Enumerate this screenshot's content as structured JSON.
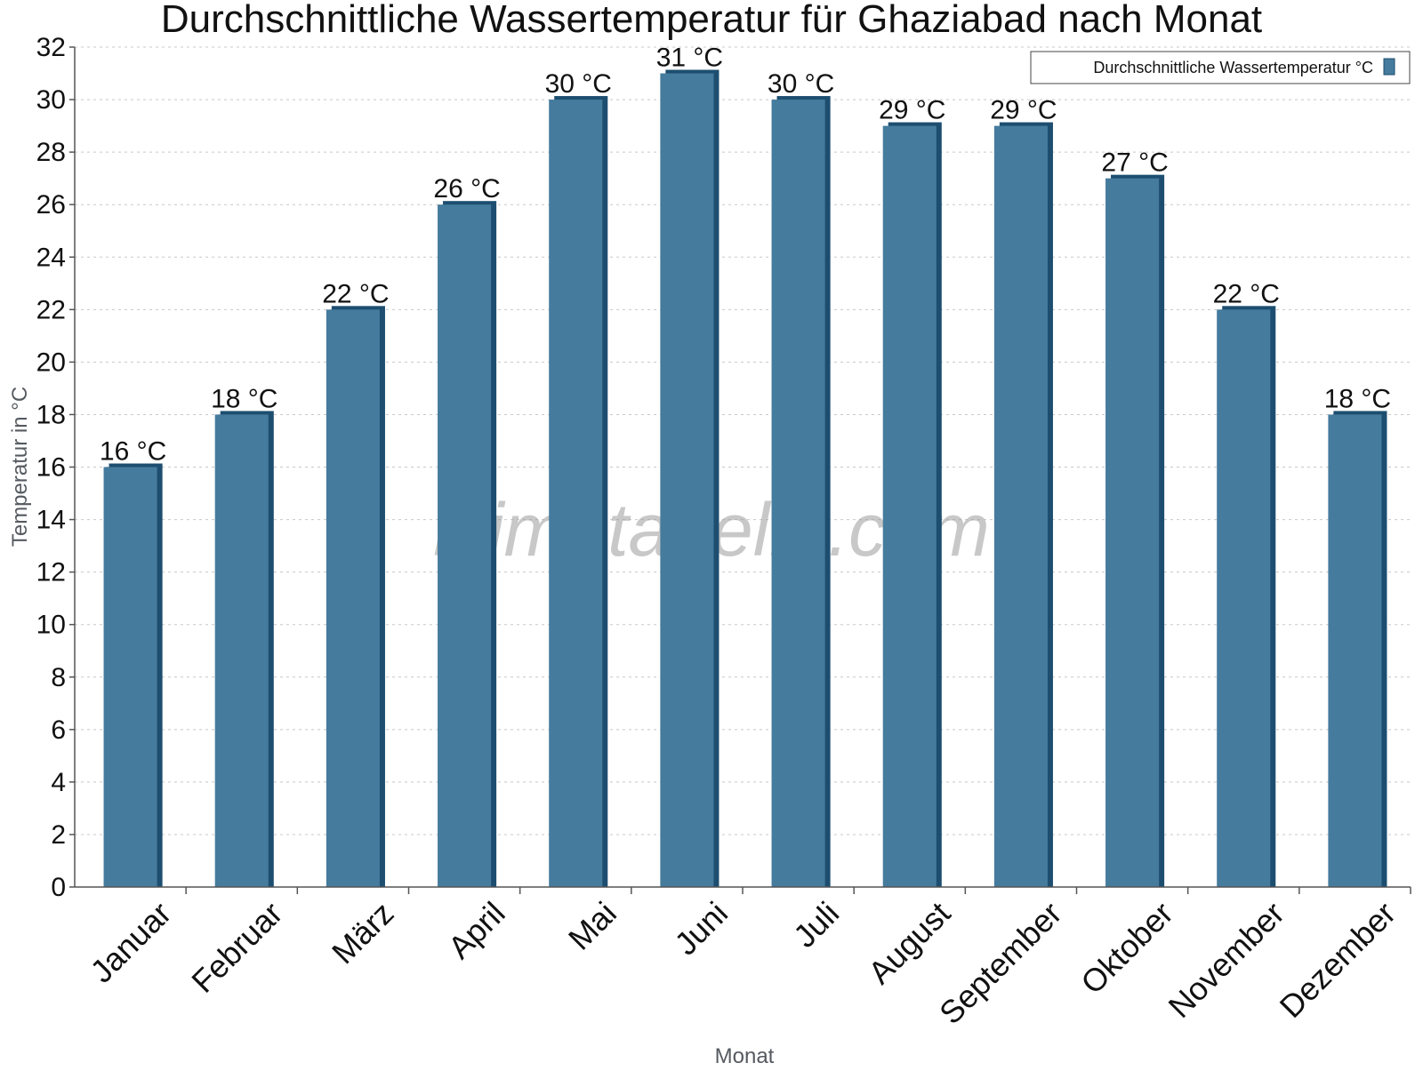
{
  "chart_data": {
    "type": "bar",
    "title": "Durchschnittliche Wassertemperatur für Ghaziabad nach Monat",
    "xlabel": "Monat",
    "ylabel": "Temperatur in °C",
    "categories": [
      "Januar",
      "Februar",
      "März",
      "April",
      "Mai",
      "Juni",
      "Juli",
      "August",
      "September",
      "Oktober",
      "November",
      "Dezember"
    ],
    "series": [
      {
        "name": "Durchschnittliche Wassertemperatur °C",
        "values": [
          16,
          18,
          22,
          26,
          30,
          31,
          30,
          29,
          29,
          27,
          22,
          18
        ],
        "labels": [
          "16 °C",
          "18 °C",
          "22 °C",
          "26 °C",
          "30 °C",
          "31 °C",
          "30 °C",
          "29 °C",
          "29 °C",
          "27 °C",
          "22 °C",
          "18 °C"
        ],
        "color": "#457b9d",
        "shade_color": "#1d4e70"
      }
    ],
    "ylim": [
      0,
      32
    ],
    "ytick_step": 2,
    "grid": true,
    "legend_position": "top-right",
    "watermark": "klimatabelle.com"
  }
}
